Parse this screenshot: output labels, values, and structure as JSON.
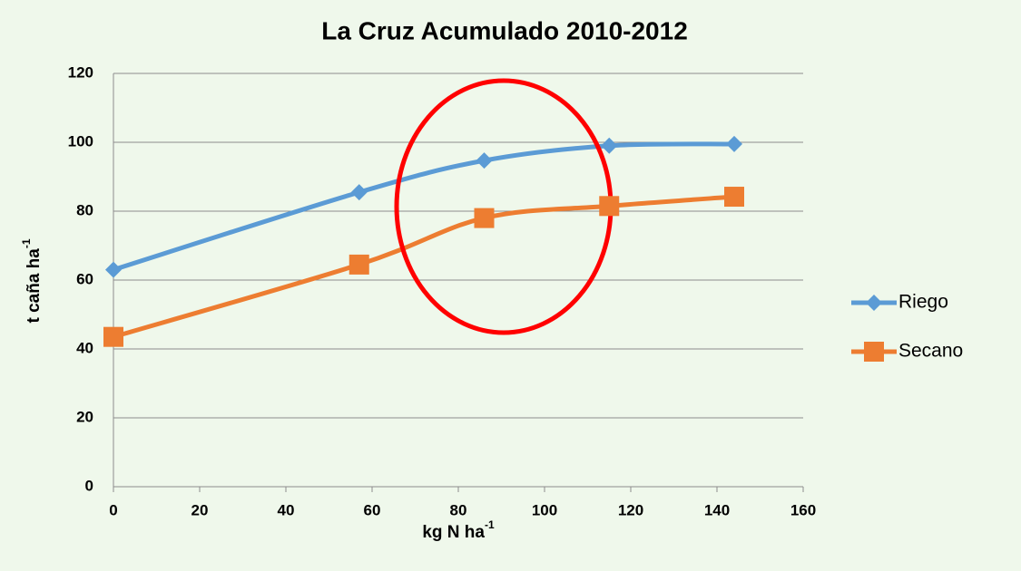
{
  "chart_data": {
    "type": "line",
    "title": "La Cruz Acumulado  2010-2012",
    "x_label": {
      "text": "kg N ha",
      "superscript": "-1"
    },
    "y_label": {
      "text": "t caña ha",
      "superscript": "-1"
    },
    "x": [
      0,
      57,
      86,
      115,
      144
    ],
    "series": [
      {
        "name": "Riego",
        "color": "#5b9bd5",
        "marker": "diamond",
        "values": [
          63,
          85.5,
          94.7,
          99,
          99.5
        ]
      },
      {
        "name": "Secano",
        "color": "#ed7d31",
        "marker": "square",
        "values": [
          43.5,
          64.5,
          78,
          81.5,
          84.2
        ]
      }
    ],
    "xlim": [
      0,
      160
    ],
    "xticks": [
      0,
      20,
      40,
      60,
      80,
      100,
      120,
      140,
      160
    ],
    "ylim": [
      0,
      120
    ],
    "yticks": [
      0,
      20,
      40,
      60,
      80,
      100,
      120
    ],
    "grid": true,
    "smooth": true,
    "legend": "right"
  }
}
